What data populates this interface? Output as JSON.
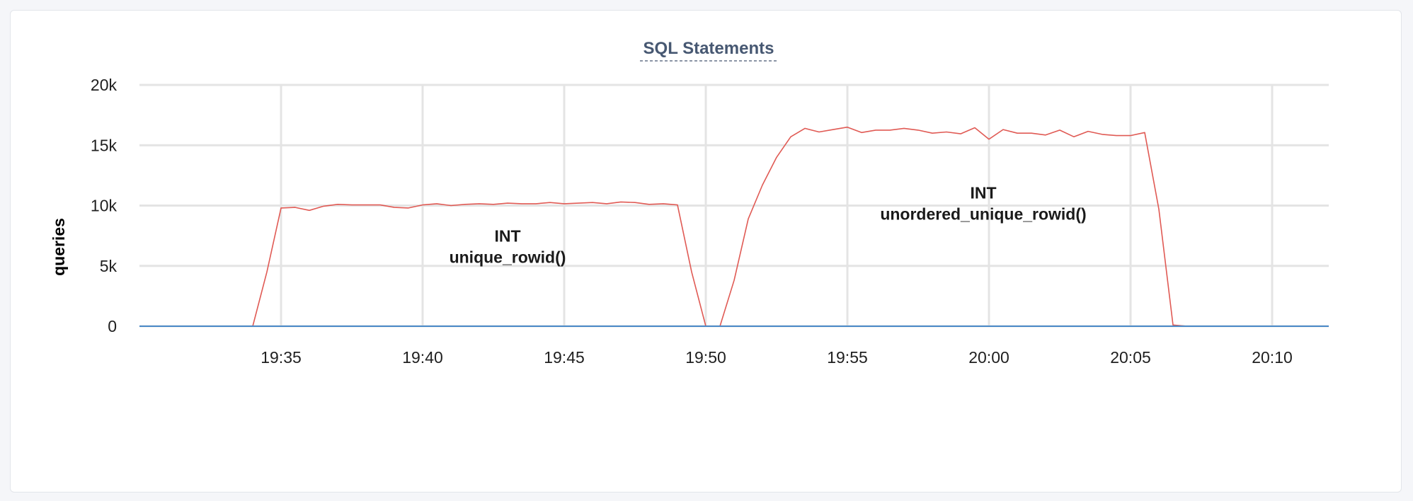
{
  "chart_data": {
    "type": "line",
    "title": "SQL Statements",
    "xlabel": "",
    "ylabel": "queries",
    "x_tick_labels": [
      "19:35",
      "19:40",
      "19:45",
      "19:50",
      "19:55",
      "20:00",
      "20:05",
      "20:10"
    ],
    "y_tick_labels": [
      "0",
      "5k",
      "10k",
      "15k",
      "20k"
    ],
    "ylim": [
      0,
      20000
    ],
    "xlim": [
      "19:30",
      "20:12"
    ],
    "grid": true,
    "legend": "none",
    "annotations": [
      {
        "lines": [
          "INT",
          "unique_rowid()"
        ],
        "time": "19:43",
        "y": 7000
      },
      {
        "lines": [
          "INT",
          "unordered_unique_rowid()"
        ],
        "time": "19:59.8",
        "y": 10600
      }
    ],
    "series": [
      {
        "color": "#e05a54",
        "points": [
          [
            "19:30",
            0
          ],
          [
            "19:34",
            0
          ],
          [
            "19:34.5",
            4500
          ],
          [
            "19:35",
            9800
          ],
          [
            "19:35.5",
            9850
          ],
          [
            "19:36",
            9600
          ],
          [
            "19:36.5",
            9950
          ],
          [
            "19:37",
            10100
          ],
          [
            "19:37.5",
            10050
          ],
          [
            "19:38",
            10050
          ],
          [
            "19:38.5",
            10050
          ],
          [
            "19:39",
            9850
          ],
          [
            "19:39.5",
            9800
          ],
          [
            "19:40",
            10050
          ],
          [
            "19:40.5",
            10150
          ],
          [
            "19:41",
            10000
          ],
          [
            "19:41.5",
            10100
          ],
          [
            "19:42",
            10150
          ],
          [
            "19:42.5",
            10100
          ],
          [
            "19:43",
            10200
          ],
          [
            "19:43.5",
            10150
          ],
          [
            "19:44",
            10150
          ],
          [
            "19:44.5",
            10250
          ],
          [
            "19:45",
            10150
          ],
          [
            "19:45.5",
            10200
          ],
          [
            "19:46",
            10250
          ],
          [
            "19:46.5",
            10150
          ],
          [
            "19:47",
            10300
          ],
          [
            "19:47.5",
            10250
          ],
          [
            "19:48",
            10100
          ],
          [
            "19:48.5",
            10150
          ],
          [
            "19:49",
            10050
          ],
          [
            "19:49.5",
            4500
          ],
          [
            "19:50",
            0
          ],
          [
            "19:50.5",
            0
          ],
          [
            "19:51",
            3800
          ],
          [
            "19:51.5",
            8900
          ],
          [
            "19:52",
            11700
          ],
          [
            "19:52.5",
            14000
          ],
          [
            "19:53",
            15700
          ],
          [
            "19:53.5",
            16400
          ],
          [
            "19:54",
            16100
          ],
          [
            "19:54.5",
            16300
          ],
          [
            "19:55",
            16500
          ],
          [
            "19:55.5",
            16050
          ],
          [
            "19:56",
            16250
          ],
          [
            "19:56.5",
            16250
          ],
          [
            "19:57",
            16400
          ],
          [
            "19:57.5",
            16250
          ],
          [
            "19:58",
            16000
          ],
          [
            "19:58.5",
            16100
          ],
          [
            "19:59",
            15950
          ],
          [
            "19:59.5",
            16450
          ],
          [
            "20:00",
            15500
          ],
          [
            "20:00.5",
            16300
          ],
          [
            "20:01",
            16000
          ],
          [
            "20:01.5",
            16000
          ],
          [
            "20:02",
            15850
          ],
          [
            "20:02.5",
            16250
          ],
          [
            "20:03",
            15700
          ],
          [
            "20:03.5",
            16150
          ],
          [
            "20:04",
            15900
          ],
          [
            "20:04.5",
            15800
          ],
          [
            "20:05",
            15800
          ],
          [
            "20:05.5",
            16050
          ],
          [
            "20:06",
            9700
          ],
          [
            "20:06.5",
            100
          ],
          [
            "20:07",
            0
          ],
          [
            "20:12",
            0
          ]
        ]
      },
      {
        "color": "#4a8ac8",
        "points": [
          [
            "19:30",
            0
          ],
          [
            "20:12",
            0
          ]
        ]
      }
    ]
  }
}
